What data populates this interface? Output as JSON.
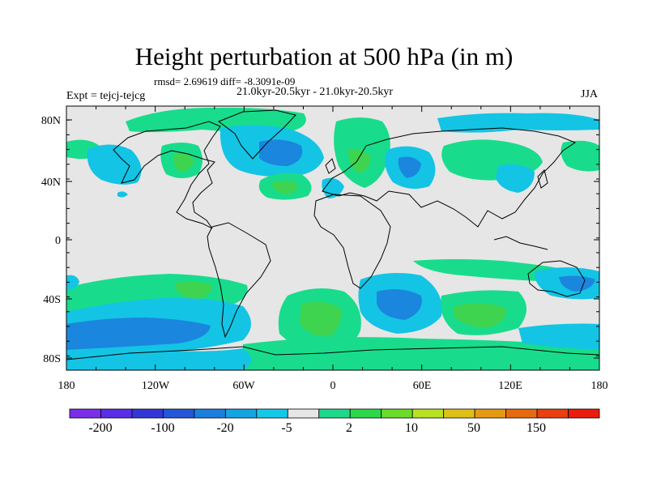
{
  "title": "Height perturbation at 500 hPa (in m)",
  "stats": "rmsd= 2.69619 diff= -8.3091e-09",
  "periods": "21.0kyr-20.5kyr - 21.0kyr-20.5kyr",
  "experiment": "Expt = tejcj-tejcg",
  "season": "JJA",
  "y_ticks": [
    "80N",
    "40N",
    "0",
    "40S",
    "80S"
  ],
  "x_ticks": [
    "180",
    "120W",
    "60W",
    "0",
    "60E",
    "120E",
    "180"
  ],
  "colorbar": {
    "labels": [
      "-200",
      "-100",
      "-20",
      "-5",
      "2",
      "10",
      "50",
      "150"
    ],
    "colors": [
      "#7a2ee8",
      "#5a2ee6",
      "#3236d6",
      "#2456d6",
      "#1b7fde",
      "#14a5e0",
      "#16c8e8",
      "#e6e6e6",
      "#1fd98a",
      "#2ed84a",
      "#6cdc2a",
      "#b8e024",
      "#dec018",
      "#e49a14",
      "#e66a10",
      "#e8400e",
      "#ea1c0c"
    ]
  },
  "palette": {
    "land_neutral": "#e6e6e6",
    "light_blue": "#14c4e4",
    "blue": "#1b86de",
    "green": "#18dc8c",
    "mid_green": "#3ed450",
    "coast": "#000000"
  }
}
